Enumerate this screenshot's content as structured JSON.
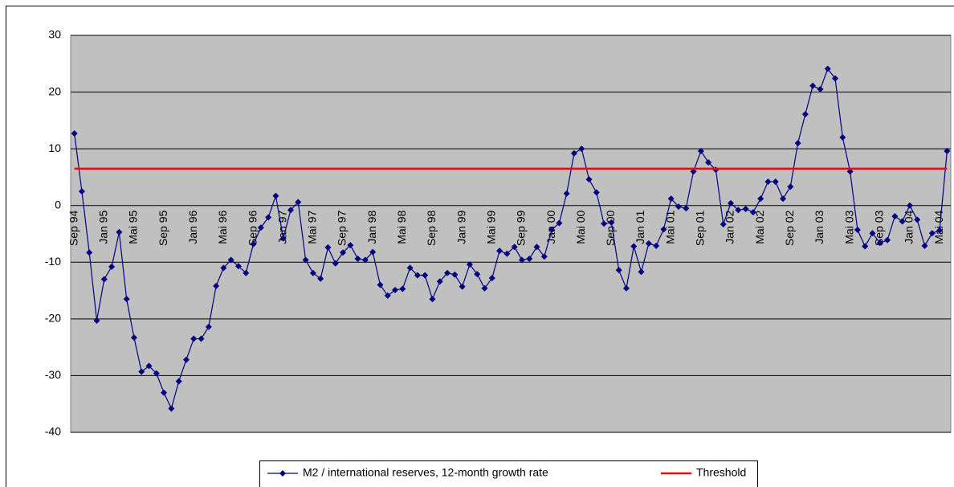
{
  "chart_data": {
    "type": "line",
    "categories": [
      "Sep 94",
      null,
      null,
      null,
      "Jan 95",
      null,
      null,
      null,
      "Mai 95",
      null,
      null,
      null,
      "Sep 95",
      null,
      null,
      null,
      "Jan 96",
      null,
      null,
      null,
      "Mai 96",
      null,
      null,
      null,
      "Sep 96",
      null,
      null,
      null,
      "Jan 97",
      null,
      null,
      null,
      "Mai 97",
      null,
      null,
      null,
      "Sep 97",
      null,
      null,
      null,
      "Jan 98",
      null,
      null,
      null,
      "Mai 98",
      null,
      null,
      null,
      "Sep 98",
      null,
      null,
      null,
      "Jan 99",
      null,
      null,
      null,
      "Mai 99",
      null,
      null,
      null,
      "Sep 99",
      null,
      null,
      null,
      "Jan 00",
      null,
      null,
      null,
      "Mai 00",
      null,
      null,
      null,
      "Sep 00",
      null,
      null,
      null,
      "Jan 01",
      null,
      null,
      null,
      "Mai 01",
      null,
      null,
      null,
      "Sep 01",
      null,
      null,
      null,
      "Jan 02",
      null,
      null,
      null,
      "Mai 02",
      null,
      null,
      null,
      "Sep 02",
      null,
      null,
      null,
      "Jan 03",
      null,
      null,
      null,
      "Mai 03",
      null,
      null,
      null,
      "Sep 03",
      null,
      null,
      null,
      "Jan 04",
      null,
      null,
      null,
      "Mai 04",
      null
    ],
    "series": [
      {
        "name": "M2 / international reserves, 12-month growth rate",
        "color": "#000080",
        "marker": "diamond",
        "values": [
          12.7,
          2.5,
          -8.3,
          -20.3,
          -13,
          -10.8,
          -4.7,
          -16.5,
          -23.3,
          -29.3,
          -28.3,
          -29.6,
          -33,
          -35.8,
          -31,
          -27.2,
          -23.5,
          -23.5,
          -21.4,
          -14.2,
          -11,
          -9.6,
          -10.7,
          -11.9,
          -6.8,
          -3.9,
          -2.1,
          1.7,
          -5.8,
          -0.8,
          0.6,
          -9.6,
          -11.9,
          -12.9,
          -7.4,
          -10.2,
          -8.3,
          -7,
          -9.4,
          -9.6,
          -8.2,
          -14,
          -15.9,
          -14.9,
          -14.7,
          -11,
          -12.3,
          -12.3,
          -16.5,
          -13.4,
          -11.9,
          -12.2,
          -14.3,
          -10.4,
          -12.1,
          -14.6,
          -12.8,
          -8,
          -8.5,
          -7.3,
          -9.6,
          -9.4,
          -7.3,
          -9,
          -4.3,
          -3.1,
          2.1,
          9.2,
          10,
          4.6,
          2.3,
          -3.2,
          -3,
          -11.4,
          -14.6,
          -7.2,
          -11.7,
          -6.7,
          -7.1,
          -4.2,
          1.2,
          -0.2,
          -0.5,
          6,
          9.6,
          7.6,
          6.3,
          -3.3,
          0.4,
          -0.8,
          -0.6,
          -1.2,
          1.2,
          4.2,
          4.2,
          1.2,
          3.3,
          11,
          16.1,
          21.1,
          20.5,
          24.1,
          22.4,
          12,
          6,
          -4.3,
          -7.2,
          -4.9,
          -6.6,
          -6.1,
          -1.9,
          -2.8,
          0,
          -2.5,
          -7.1,
          -4.9,
          -4.4,
          9.6
        ]
      },
      {
        "name": "Threshold",
        "color": "#ff0000",
        "values": [
          6.5,
          6.5,
          6.5,
          6.5,
          6.5,
          6.5,
          6.5,
          6.5,
          6.5,
          6.5,
          6.5,
          6.5,
          6.5,
          6.5,
          6.5,
          6.5,
          6.5,
          6.5,
          6.5,
          6.5,
          6.5,
          6.5,
          6.5,
          6.5,
          6.5,
          6.5,
          6.5,
          6.5,
          6.5,
          6.5,
          6.5,
          6.5,
          6.5,
          6.5,
          6.5,
          6.5,
          6.5,
          6.5,
          6.5,
          6.5,
          6.5,
          6.5,
          6.5,
          6.5,
          6.5,
          6.5,
          6.5,
          6.5,
          6.5,
          6.5,
          6.5,
          6.5,
          6.5,
          6.5,
          6.5,
          6.5,
          6.5,
          6.5,
          6.5,
          6.5,
          6.5,
          6.5,
          6.5,
          6.5,
          6.5,
          6.5,
          6.5,
          6.5,
          6.5,
          6.5,
          6.5,
          6.5,
          6.5,
          6.5,
          6.5,
          6.5,
          6.5,
          6.5,
          6.5,
          6.5,
          6.5,
          6.5,
          6.5,
          6.5,
          6.5,
          6.5,
          6.5,
          6.5,
          6.5,
          6.5,
          6.5,
          6.5,
          6.5,
          6.5,
          6.5,
          6.5,
          6.5,
          6.5,
          6.5,
          6.5,
          6.5,
          6.5,
          6.5,
          6.5,
          6.5,
          6.5,
          6.5,
          6.5,
          6.5,
          6.5,
          6.5,
          6.5,
          6.5,
          6.5,
          6.5,
          6.5,
          6.5,
          6.5
        ]
      }
    ],
    "ylim": [
      -40,
      30
    ],
    "yticks": [
      -40,
      -30,
      -20,
      -10,
      0,
      10,
      20,
      30
    ],
    "grid": true
  }
}
